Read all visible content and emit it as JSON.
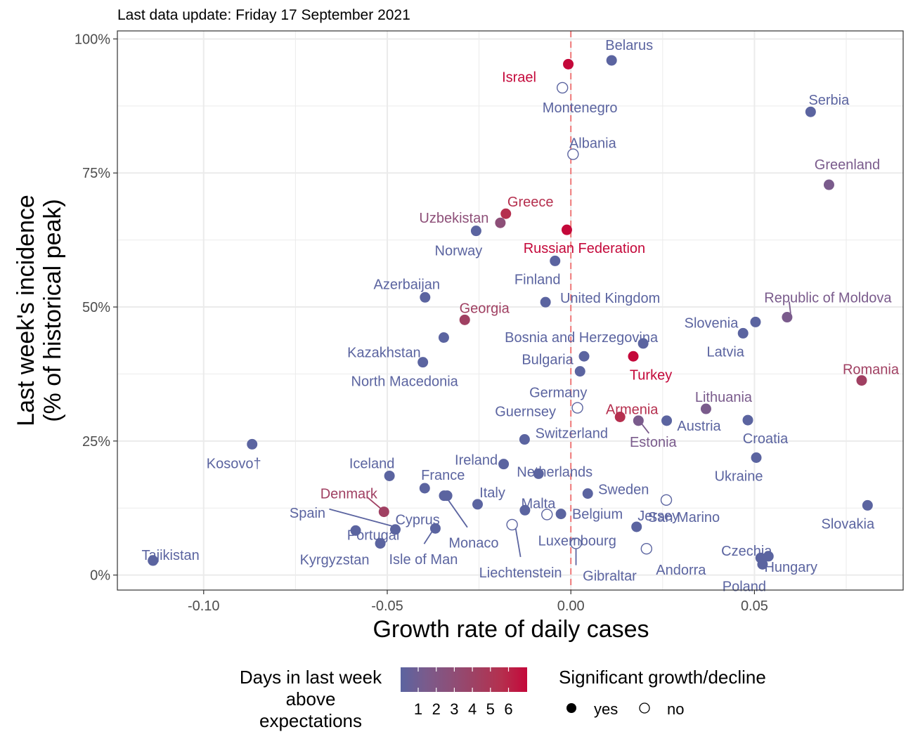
{
  "chart_data": {
    "type": "scatter",
    "subtitle": "Last data update: Friday 17 September 2021",
    "xlabel": "Growth rate of daily cases",
    "ylabel_line1": "Last week's incidence",
    "ylabel_line2": "(% of historical peak)",
    "xlim": [
      -0.1235,
      0.0905
    ],
    "ylim": [
      -2.8,
      101.5
    ],
    "x_ticks": [
      {
        "value": -0.1,
        "label": "-0.10"
      },
      {
        "value": -0.05,
        "label": "-0.05"
      },
      {
        "value": 0.0,
        "label": "0.00"
      },
      {
        "value": 0.05,
        "label": "0.05"
      }
    ],
    "y_ticks": [
      {
        "value": 0,
        "label": "0%"
      },
      {
        "value": 25,
        "label": "25%"
      },
      {
        "value": 50,
        "label": "50%"
      },
      {
        "value": 75,
        "label": "75%"
      },
      {
        "value": 100,
        "label": "100%"
      }
    ],
    "reference_line_x": 0,
    "grid": true,
    "legend_color": {
      "title_lines": [
        "Days in last week",
        "above",
        "expectations"
      ],
      "labels": [
        "1",
        "2",
        "3",
        "4",
        "5",
        "6"
      ],
      "colors": [
        "#5b64a0",
        "#7a5b8c",
        "#8d4f78",
        "#a04062",
        "#b52f4e",
        "#c4083a"
      ]
    },
    "legend_shape": {
      "title": "Significant growth/decline",
      "yes_label": "yes",
      "no_label": "no"
    },
    "points": [
      {
        "name": "Belarus",
        "x": 0.0111,
        "y": 96.0,
        "days": 1,
        "significant": true
      },
      {
        "name": "Israel",
        "x": -0.0007,
        "y": 95.3,
        "days": 6,
        "significant": true
      },
      {
        "name": "Montenegro",
        "x": -0.0023,
        "y": 90.9,
        "days": 1,
        "significant": false
      },
      {
        "name": "Serbia",
        "x": 0.0653,
        "y": 86.4,
        "days": 1,
        "significant": true
      },
      {
        "name": "Albania",
        "x": 0.0006,
        "y": 78.5,
        "days": 1,
        "significant": false
      },
      {
        "name": "Greenland",
        "x": 0.0703,
        "y": 72.8,
        "days": 2,
        "significant": true
      },
      {
        "name": "Greece",
        "x": -0.0177,
        "y": 67.4,
        "days": 5,
        "significant": true
      },
      {
        "name": "Uzbekistan",
        "x": -0.0192,
        "y": 65.7,
        "days": 3,
        "significant": true
      },
      {
        "name": "Norway",
        "x": -0.0258,
        "y": 64.2,
        "days": 1,
        "significant": true
      },
      {
        "name": "Russian Federation",
        "x": -0.0011,
        "y": 64.4,
        "days": 6,
        "significant": true
      },
      {
        "name": "Finland",
        "x": -0.0043,
        "y": 58.6,
        "days": 1,
        "significant": true
      },
      {
        "name": "Azerbaijan",
        "x": -0.0397,
        "y": 51.8,
        "days": 1,
        "significant": true
      },
      {
        "name": "United Kingdom",
        "x": -0.0069,
        "y": 50.9,
        "days": 1,
        "significant": true
      },
      {
        "name": "Georgia",
        "x": -0.0289,
        "y": 47.6,
        "days": 4,
        "significant": true
      },
      {
        "name": "Republic of Moldova",
        "x": 0.0589,
        "y": 48.1,
        "days": 2,
        "significant": true
      },
      {
        "name": "Slovenia",
        "x": 0.0503,
        "y": 47.2,
        "days": 1,
        "significant": true
      },
      {
        "name": "Latvia",
        "x": 0.0469,
        "y": 45.1,
        "days": 1,
        "significant": true
      },
      {
        "name": "Kazakhstan",
        "x": -0.0346,
        "y": 44.3,
        "days": 1,
        "significant": true
      },
      {
        "name": "Bosnia and Herzegovina",
        "x": 0.0197,
        "y": 43.2,
        "days": 1,
        "significant": true
      },
      {
        "name": "Bulgaria",
        "x": 0.0036,
        "y": 40.8,
        "days": 1,
        "significant": true
      },
      {
        "name": "Turkey",
        "x": 0.017,
        "y": 40.8,
        "days": 6,
        "significant": true
      },
      {
        "name": "North Macedonia",
        "x": -0.0403,
        "y": 39.7,
        "days": 1,
        "significant": true
      },
      {
        "name": "Germany",
        "x": 0.0025,
        "y": 38.0,
        "days": 1,
        "significant": true
      },
      {
        "name": "Romania",
        "x": 0.0792,
        "y": 36.3,
        "days": 4,
        "significant": true
      },
      {
        "name": "Guernsey",
        "x": 0.0018,
        "y": 31.2,
        "days": 1,
        "significant": false
      },
      {
        "name": "Lithuania",
        "x": 0.0368,
        "y": 31.0,
        "days": 2,
        "significant": true
      },
      {
        "name": "Armenia",
        "x": 0.0134,
        "y": 29.5,
        "days": 5,
        "significant": true
      },
      {
        "name": "Estonia",
        "x": 0.0184,
        "y": 28.8,
        "days": 2,
        "significant": true
      },
      {
        "name": "Austria",
        "x": 0.0261,
        "y": 28.8,
        "days": 1,
        "significant": true
      },
      {
        "name": "Croatia",
        "x": 0.0482,
        "y": 28.9,
        "days": 1,
        "significant": true
      },
      {
        "name": "Switzerland",
        "x": -0.0126,
        "y": 25.3,
        "days": 1,
        "significant": true
      },
      {
        "name": "Kosovo†",
        "x": -0.0868,
        "y": 24.4,
        "days": 1,
        "significant": true
      },
      {
        "name": "Ukraine",
        "x": 0.0505,
        "y": 21.9,
        "days": 1,
        "significant": true
      },
      {
        "name": "Ireland",
        "x": -0.0183,
        "y": 20.7,
        "days": 1,
        "significant": true
      },
      {
        "name": "Netherlands",
        "x": -0.0088,
        "y": 18.9,
        "days": 1,
        "significant": true
      },
      {
        "name": "Iceland",
        "x": -0.0494,
        "y": 18.5,
        "days": 1,
        "significant": true
      },
      {
        "name": "France",
        "x": -0.0398,
        "y": 16.2,
        "days": 1,
        "significant": true
      },
      {
        "name": "Sweden",
        "x": 0.0046,
        "y": 15.2,
        "days": 1,
        "significant": true
      },
      {
        "name": "Monaco",
        "x": -0.0345,
        "y": 14.8,
        "days": 1,
        "significant": true
      },
      {
        "name": "San Marino",
        "x": 0.026,
        "y": 14.0,
        "days": 1,
        "significant": false
      },
      {
        "name": "Italy",
        "x": -0.0254,
        "y": 13.2,
        "days": 1,
        "significant": true
      },
      {
        "name": "Denmark",
        "x": -0.0509,
        "y": 11.8,
        "days": 4,
        "significant": true
      },
      {
        "name": "Cyprus",
        "x": -0.0337,
        "y": 14.8,
        "days": 1,
        "significant": true
      },
      {
        "name": "Malta",
        "x": -0.0125,
        "y": 12.1,
        "days": 1,
        "significant": true
      },
      {
        "name": "Belgium",
        "x": -0.0027,
        "y": 11.4,
        "days": 1,
        "significant": true
      },
      {
        "name": "Luxembourg",
        "x": -0.0065,
        "y": 11.3,
        "days": 1,
        "significant": false
      },
      {
        "name": "Liechtenstein",
        "x": -0.016,
        "y": 9.4,
        "days": 1,
        "significant": false
      },
      {
        "name": "Slovakia",
        "x": 0.0808,
        "y": 13.0,
        "days": 1,
        "significant": true
      },
      {
        "name": "Jersey",
        "x": 0.0179,
        "y": 9.0,
        "days": 1,
        "significant": true
      },
      {
        "name": "Portugal",
        "x": -0.0586,
        "y": 8.3,
        "days": 1,
        "significant": true
      },
      {
        "name": "Spain",
        "x": -0.0478,
        "y": 8.5,
        "days": 1,
        "significant": true
      },
      {
        "name": "Isle of Man",
        "x": -0.0369,
        "y": 8.7,
        "days": 1,
        "significant": true
      },
      {
        "name": "Kyrgyzstan",
        "x": -0.0519,
        "y": 5.9,
        "days": 1,
        "significant": true
      },
      {
        "name": "Gibraltar",
        "x": 0.0014,
        "y": 5.9,
        "days": 1,
        "significant": false
      },
      {
        "name": "Andorra",
        "x": 0.0206,
        "y": 4.9,
        "days": 1,
        "significant": false
      },
      {
        "name": "Czechia",
        "x": 0.0517,
        "y": 3.2,
        "days": 1,
        "significant": true
      },
      {
        "name": "Hungary",
        "x": 0.0538,
        "y": 3.5,
        "days": 1,
        "significant": true
      },
      {
        "name": "Poland",
        "x": 0.0522,
        "y": 2.0,
        "days": 1,
        "significant": true
      },
      {
        "name": "Tajikistan",
        "x": -0.1138,
        "y": 2.7,
        "days": 1,
        "significant": true
      }
    ]
  }
}
